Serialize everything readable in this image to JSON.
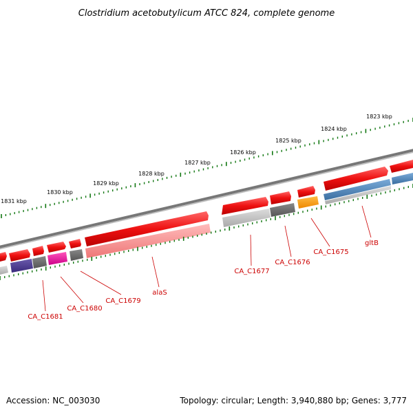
{
  "title": "Clostridium acetobutylicum ATCC 824, complete genome",
  "footer": {
    "accession": "Accession: NC_003030",
    "stats": "Topology: circular; Length: 3,940,880 bp; Genes: 3,777"
  },
  "ruler_labels": [
    "1823 kbp",
    "1824 kbp",
    "1825 kbp",
    "1826 kbp",
    "1827 kbp",
    "1828 kbp",
    "1829 kbp",
    "1830 kbp",
    "1831 kbp"
  ],
  "gene_labels": [
    "CA_C1681",
    "CA_C1680",
    "CA_C1679",
    "alaS",
    "CA_C1677",
    "CA_C1676",
    "CA_C1675",
    "gltB"
  ],
  "colors": {
    "forward_gene": "#ee1111",
    "rna_track": "#ff9999",
    "grey_track": "#bbbbbb",
    "dark_grey": "#666666",
    "purple": "#4a3a8c",
    "magenta": "#ee1199",
    "orange": "#ff9900",
    "blue": "#4f86bb",
    "tick_green": "#117711",
    "label_red": "#cc0000"
  }
}
